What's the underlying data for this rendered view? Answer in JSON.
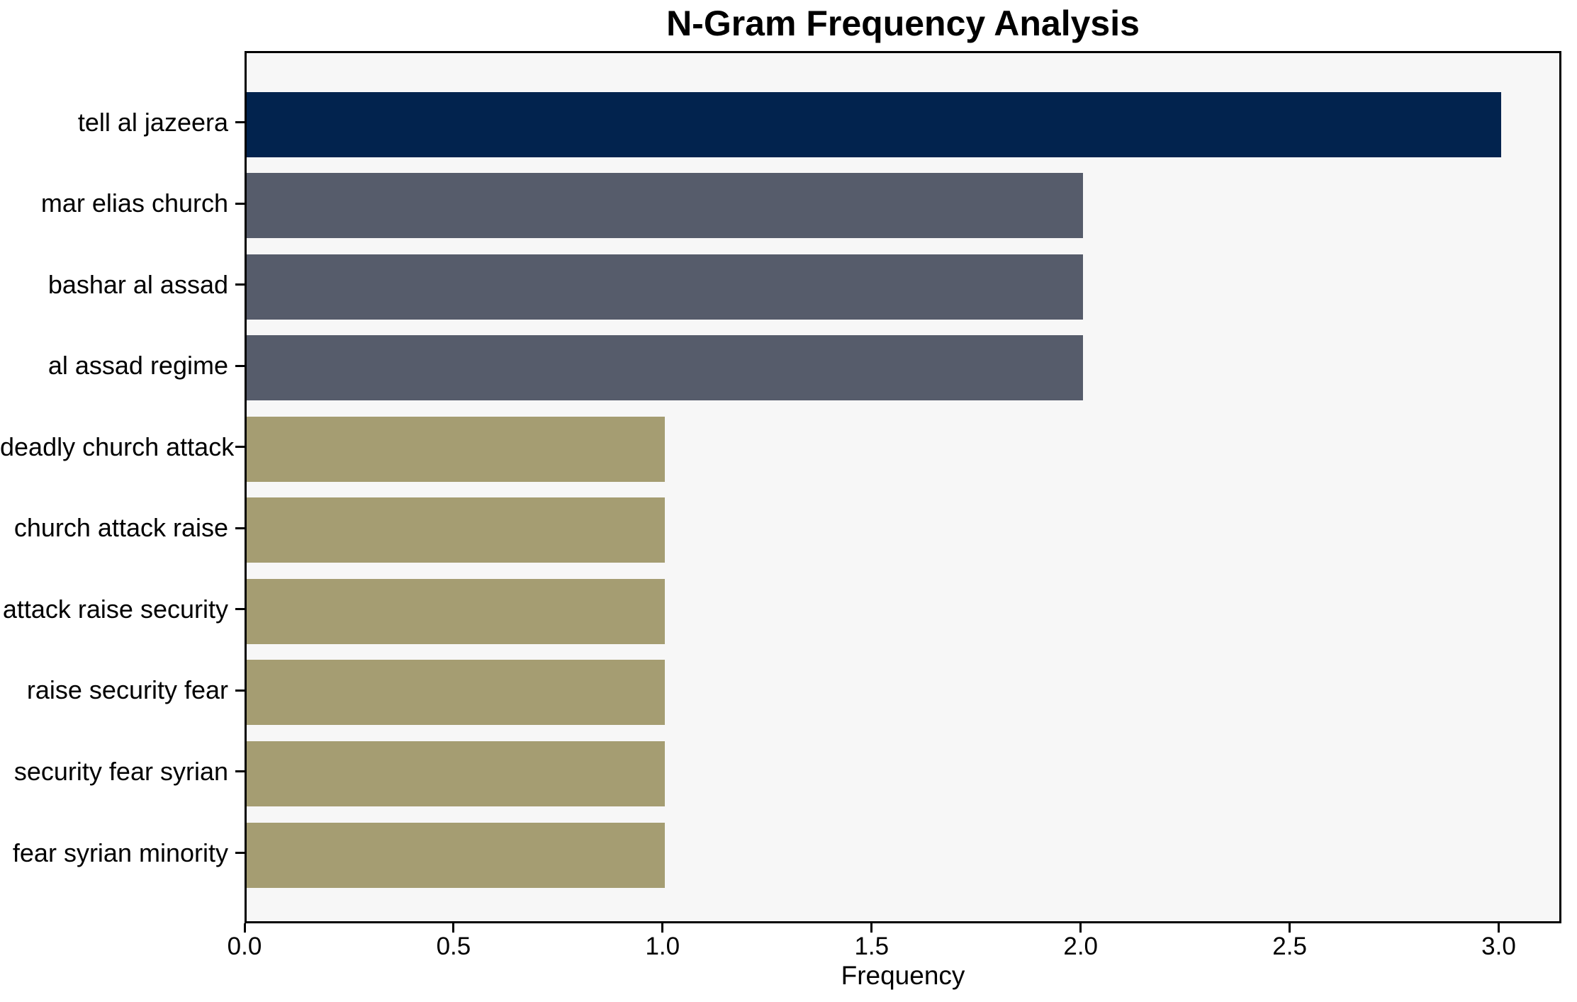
{
  "chart_data": {
    "type": "bar",
    "orientation": "horizontal",
    "title": "N-Gram Frequency Analysis",
    "xlabel": "Frequency",
    "ylabel": "",
    "categories": [
      "tell al jazeera",
      "mar elias church",
      "bashar al assad",
      "al assad regime",
      "deadly church attack",
      "church attack raise",
      "attack raise security",
      "raise security fear",
      "security fear syrian",
      "fear syrian minority"
    ],
    "values": [
      3,
      2,
      2,
      2,
      1,
      1,
      1,
      1,
      1,
      1
    ],
    "xlim": [
      0,
      3.15
    ],
    "xticks": [
      "0.0",
      "0.5",
      "1.0",
      "1.5",
      "2.0",
      "2.5",
      "3.0"
    ],
    "grid": false,
    "legend": null,
    "bar_colors": [
      "#02234e",
      "#565c6b",
      "#565c6b",
      "#565c6b",
      "#a59d72",
      "#a59d72",
      "#a59d72",
      "#a59d72",
      "#a59d72",
      "#a59d72"
    ],
    "colors": {
      "figure_bg": "#ffffff",
      "plot_bg": "#f7f7f7",
      "spine": "#000000",
      "text": "#000000"
    }
  }
}
